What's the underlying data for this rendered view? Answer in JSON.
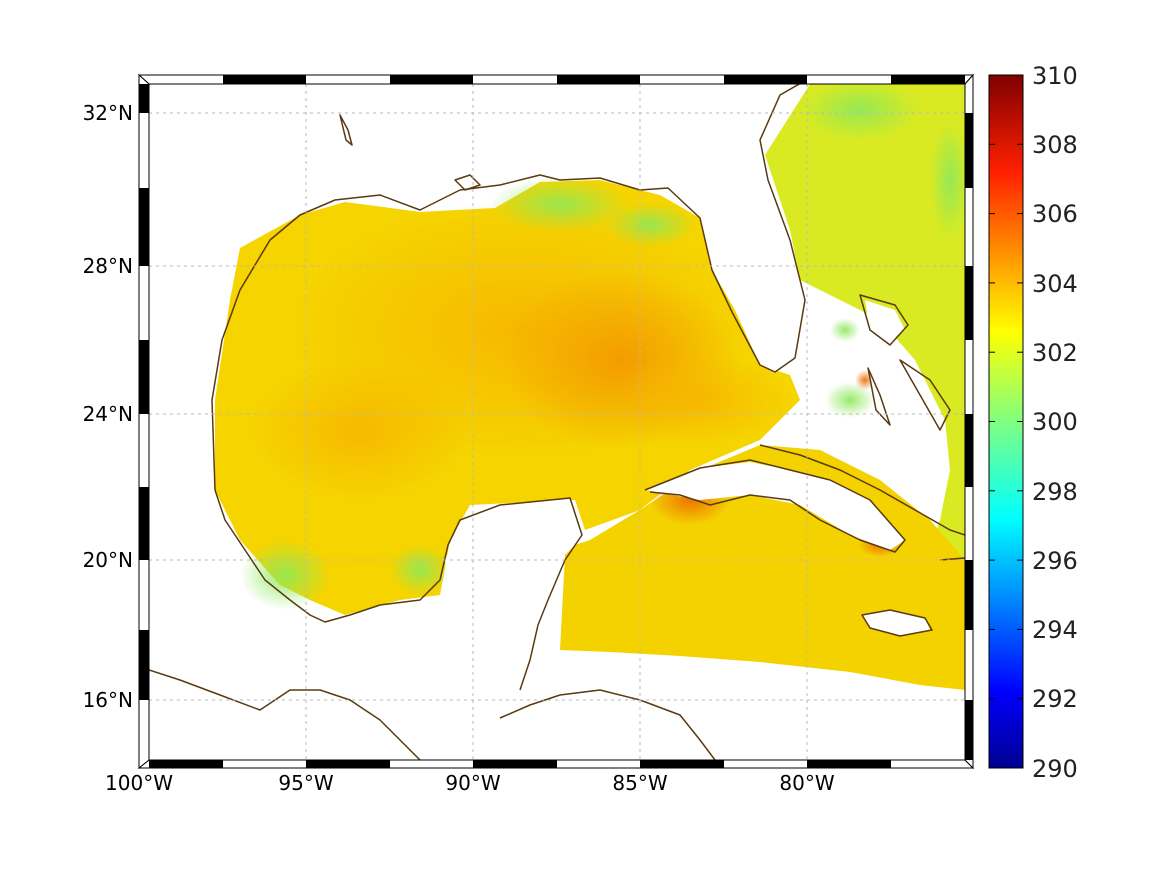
{
  "map": {
    "region": "Gulf of Mexico and Caribbean",
    "lon_range": [
      -100,
      -75
    ],
    "lat_range": [
      14.2,
      33
    ]
  },
  "axes": {
    "x_ticks": [
      {
        "value": -100,
        "label": "100°W"
      },
      {
        "value": -95,
        "label": "95°W"
      },
      {
        "value": -90,
        "label": "90°W"
      },
      {
        "value": -85,
        "label": "85°W"
      },
      {
        "value": -80,
        "label": "80°W"
      }
    ],
    "y_ticks": [
      {
        "value": 32,
        "label": "32°N"
      },
      {
        "value": 28,
        "label": "28°N"
      },
      {
        "value": 24,
        "label": "24°N"
      },
      {
        "value": 20,
        "label": "20°N"
      },
      {
        "value": 16,
        "label": "16°N"
      }
    ]
  },
  "colorbar": {
    "min": 290,
    "max": 310,
    "labels": [
      "310",
      "308",
      "306",
      "304",
      "302",
      "300",
      "298",
      "296",
      "294",
      "292",
      "290"
    ],
    "colormap": "jet",
    "stops": [
      "#00008f",
      "#0000ff",
      "#0080ff",
      "#00ffff",
      "#80ff80",
      "#ffff00",
      "#ff8000",
      "#ff0000",
      "#800000"
    ]
  },
  "colors": {
    "coastline": "#5a3a12",
    "field_base": "#f5d800"
  }
}
